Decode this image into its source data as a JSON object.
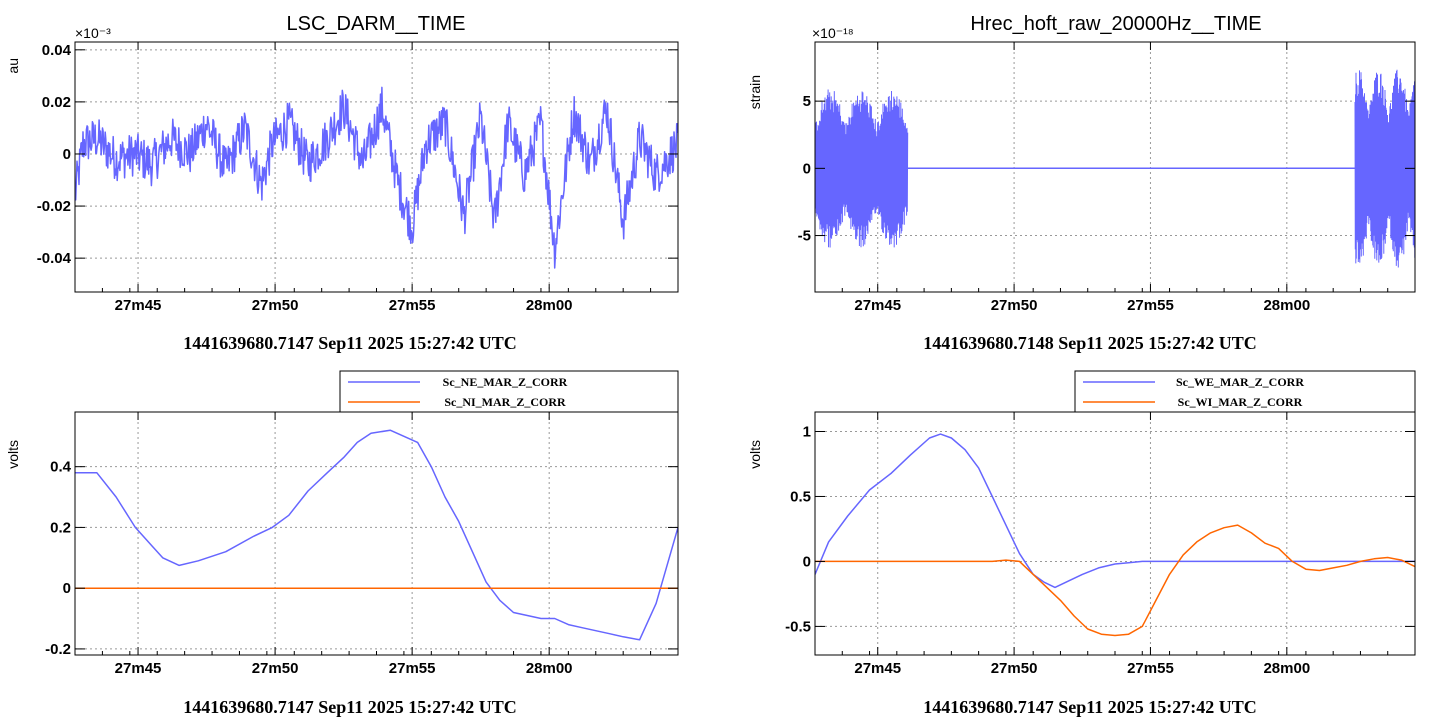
{
  "chart_data": [
    {
      "type": "line",
      "title": "LSC_DARM__TIME",
      "ylabel": "au",
      "xlabel": "1441639680.7147 Sep11 2025 15:27:42 UTC",
      "y_exponent": "×10⁻³",
      "xlim": [
        0,
        22
      ],
      "ylim": [
        -0.053,
        0.043
      ],
      "x_ticks": [
        {
          "x": 2.3,
          "label": "27m45"
        },
        {
          "x": 7.3,
          "label": "27m50"
        },
        {
          "x": 12.3,
          "label": "27m55"
        },
        {
          "x": 17.3,
          "label": "28m00"
        }
      ],
      "y_ticks": [
        {
          "y": -0.04,
          "label": "-0.04"
        },
        {
          "y": -0.02,
          "label": "-0.02"
        },
        {
          "y": 0,
          "label": "0"
        },
        {
          "y": 0.02,
          "label": "0.02"
        },
        {
          "y": 0.04,
          "label": "0.04"
        }
      ],
      "noise": 0.012,
      "series": [
        {
          "color": "#6666ff",
          "x": [
            0,
            0.3,
            0.8,
            1.5,
            2.2,
            2.8,
            3.5,
            4.2,
            4.8,
            5.5,
            6.2,
            6.8,
            7.2,
            7.8,
            8.5,
            9.2,
            9.8,
            10.5,
            11.2,
            11.8,
            12.3,
            12.8,
            13.5,
            14.2,
            14.8,
            15.3,
            15.8,
            16.4,
            17.0,
            17.5,
            18.2,
            18.8,
            19.4,
            20.0,
            20.6,
            21.2,
            22.0
          ],
          "y": [
            -0.016,
            0.004,
            0.006,
            -0.002,
            0.0,
            -0.004,
            0.006,
            0.0,
            0.012,
            -0.006,
            0.01,
            -0.012,
            0.004,
            0.012,
            -0.004,
            0.006,
            0.018,
            -0.004,
            0.018,
            -0.012,
            -0.028,
            0.004,
            0.012,
            -0.024,
            0.014,
            -0.026,
            0.012,
            -0.008,
            0.012,
            -0.036,
            0.016,
            -0.004,
            0.018,
            -0.026,
            0.006,
            -0.008,
            0.004
          ]
        }
      ]
    },
    {
      "type": "line",
      "title": "Hrec_hoft_raw_20000Hz__TIME",
      "ylabel": "strain",
      "xlabel": "1441639680.7148 Sep11 2025 15:27:42 UTC",
      "y_exponent": "×10⁻¹⁸",
      "xlim": [
        0,
        22
      ],
      "ylim": [
        -9.2,
        9.4
      ],
      "x_ticks": [
        {
          "x": 2.3,
          "label": "27m45"
        },
        {
          "x": 7.3,
          "label": "27m50"
        },
        {
          "x": 12.3,
          "label": "27m55"
        },
        {
          "x": 17.3,
          "label": "28m00"
        }
      ],
      "y_ticks": [
        {
          "y": -5,
          "label": "-5"
        },
        {
          "y": 0,
          "label": "0"
        },
        {
          "y": 5,
          "label": "5"
        }
      ],
      "bursts": [
        {
          "x_start": 0.0,
          "x_end": 3.4,
          "amplitude": 6.0
        },
        {
          "x_start": 19.8,
          "x_end": 22.0,
          "amplitude": 7.5
        }
      ],
      "series": [
        {
          "color": "#6666ff",
          "x": [
            0,
            22
          ],
          "y": [
            0,
            0
          ]
        }
      ]
    },
    {
      "type": "line",
      "title": "",
      "ylabel": "volts",
      "xlabel": "1441639680.7147 Sep11 2025 15:27:42 UTC",
      "xlim": [
        0,
        22
      ],
      "ylim": [
        -0.22,
        0.58
      ],
      "x_ticks": [
        {
          "x": 2.3,
          "label": "27m45"
        },
        {
          "x": 7.3,
          "label": "27m50"
        },
        {
          "x": 12.3,
          "label": "27m55"
        },
        {
          "x": 17.3,
          "label": "28m00"
        }
      ],
      "y_ticks": [
        {
          "y": -0.2,
          "label": "-0.2"
        },
        {
          "y": 0,
          "label": "0"
        },
        {
          "y": 0.2,
          "label": "0.2"
        },
        {
          "y": 0.4,
          "label": "0.4"
        }
      ],
      "legend": "top-right",
      "series": [
        {
          "name": "Sc_NE_MAR_Z_CORR",
          "color": "#6666ff",
          "x": [
            0,
            0.8,
            1.5,
            2.2,
            2.8,
            3.2,
            3.8,
            4.5,
            5.5,
            6.5,
            7.2,
            7.8,
            8.5,
            9.2,
            9.8,
            10.3,
            10.8,
            11.5,
            12.0,
            12.5,
            13.0,
            13.5,
            14.0,
            14.5,
            15.0,
            15.5,
            16.0,
            16.5,
            17.0,
            17.5,
            18.0,
            18.5,
            19.0,
            19.5,
            20.0,
            20.6,
            21.2,
            22.0
          ],
          "y": [
            0.38,
            0.38,
            0.3,
            0.2,
            0.14,
            0.1,
            0.075,
            0.09,
            0.12,
            0.17,
            0.2,
            0.24,
            0.32,
            0.38,
            0.43,
            0.48,
            0.51,
            0.52,
            0.5,
            0.48,
            0.4,
            0.3,
            0.22,
            0.12,
            0.02,
            -0.04,
            -0.08,
            -0.09,
            -0.1,
            -0.1,
            -0.12,
            -0.13,
            -0.14,
            -0.15,
            -0.16,
            -0.17,
            -0.05,
            0.2
          ]
        },
        {
          "name": "Sc_NI_MAR_Z_CORR",
          "color": "#ff6600",
          "x": [
            0,
            22
          ],
          "y": [
            0,
            0
          ]
        }
      ]
    },
    {
      "type": "line",
      "title": "",
      "ylabel": "volts",
      "xlabel": "1441639680.7147 Sep11 2025 15:27:42 UTC",
      "xlim": [
        0,
        22
      ],
      "ylim": [
        -0.72,
        1.15
      ],
      "x_ticks": [
        {
          "x": 2.3,
          "label": "27m45"
        },
        {
          "x": 7.3,
          "label": "27m50"
        },
        {
          "x": 12.3,
          "label": "27m55"
        },
        {
          "x": 17.3,
          "label": "28m00"
        }
      ],
      "y_ticks": [
        {
          "y": -0.5,
          "label": "-0.5"
        },
        {
          "y": 0,
          "label": "0"
        },
        {
          "y": 0.5,
          "label": "0.5"
        },
        {
          "y": 1,
          "label": "1"
        }
      ],
      "legend": "top-right",
      "series": [
        {
          "name": "Sc_WE_MAR_Z_CORR",
          "color": "#6666ff",
          "x": [
            0,
            0.5,
            1.2,
            2.0,
            2.8,
            3.5,
            4.2,
            4.6,
            5.0,
            5.5,
            6.0,
            6.5,
            7.0,
            7.5,
            8.0,
            8.4,
            8.8,
            9.3,
            9.8,
            10.4,
            11.0,
            11.5,
            12.0,
            13.0,
            22.0
          ],
          "y": [
            -0.1,
            0.15,
            0.35,
            0.55,
            0.68,
            0.82,
            0.95,
            0.98,
            0.95,
            0.86,
            0.72,
            0.5,
            0.28,
            0.06,
            -0.1,
            -0.16,
            -0.2,
            -0.15,
            -0.1,
            -0.05,
            -0.02,
            -0.01,
            0.0,
            0.0,
            0.0
          ]
        },
        {
          "name": "Sc_WI_MAR_Z_CORR",
          "color": "#ff6600",
          "x": [
            0,
            6.5,
            7.0,
            7.5,
            8.0,
            8.5,
            9.0,
            9.5,
            10.0,
            10.5,
            11.0,
            11.5,
            12.0,
            12.5,
            13.0,
            13.5,
            14.0,
            14.5,
            15.0,
            15.5,
            16.0,
            16.5,
            17.0,
            17.5,
            18.0,
            18.5,
            19.0,
            19.5,
            20.0,
            20.5,
            21.0,
            21.5,
            22.0
          ],
          "y": [
            0,
            0.0,
            0.01,
            0.0,
            -0.1,
            -0.2,
            -0.3,
            -0.42,
            -0.52,
            -0.56,
            -0.57,
            -0.56,
            -0.5,
            -0.3,
            -0.1,
            0.05,
            0.15,
            0.22,
            0.26,
            0.28,
            0.22,
            0.14,
            0.1,
            0.0,
            -0.06,
            -0.07,
            -0.05,
            -0.03,
            0.0,
            0.02,
            0.03,
            0.01,
            -0.04
          ]
        }
      ]
    }
  ]
}
